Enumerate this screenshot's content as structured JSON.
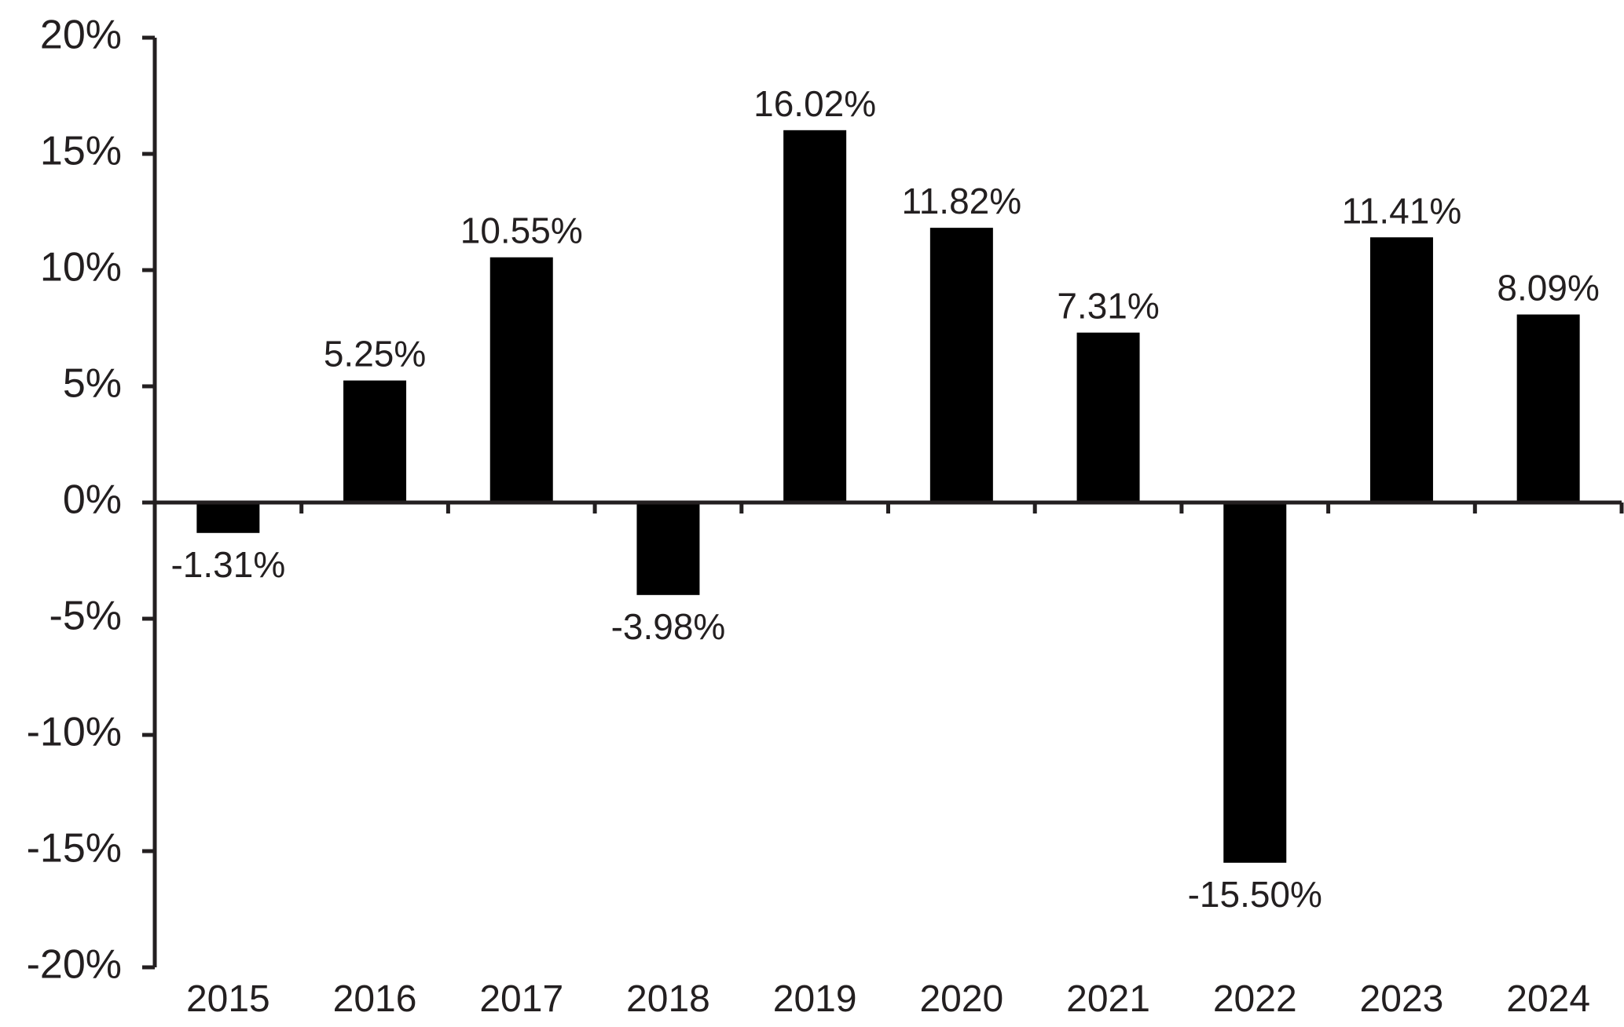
{
  "chart_data": {
    "type": "bar",
    "title": "",
    "xlabel": "",
    "ylabel": "",
    "categories": [
      "2015",
      "2016",
      "2017",
      "2018",
      "2019",
      "2020",
      "2021",
      "2022",
      "2023",
      "2024"
    ],
    "values": [
      -1.31,
      5.25,
      10.55,
      -3.98,
      16.02,
      11.82,
      7.31,
      -15.5,
      11.41,
      8.09
    ],
    "data_labels": [
      "-1.31%",
      "5.25%",
      "10.55%",
      "-3.98%",
      "16.02%",
      "11.82%",
      "7.31%",
      "-15.50%",
      "11.41%",
      "8.09%"
    ],
    "ylim": [
      -20,
      20
    ],
    "yticks": [
      20,
      15,
      10,
      5,
      0,
      -5,
      -10,
      -15,
      -20
    ],
    "ytick_labels": [
      "20%",
      "15%",
      "10%",
      "5%",
      "0%",
      "-5%",
      "-10%",
      "-15%",
      "-20%"
    ],
    "grid": false,
    "legend": "none",
    "colors": {
      "bar": "#000000",
      "axis": "#231f20",
      "text": "#231f20"
    }
  }
}
